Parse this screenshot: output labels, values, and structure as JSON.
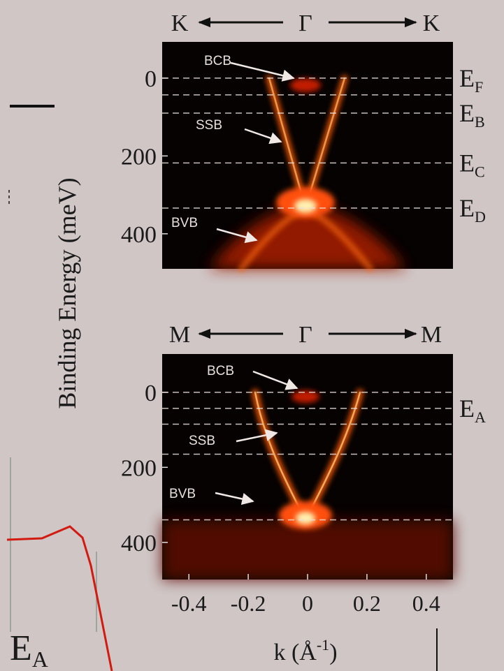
{
  "figure": {
    "ylabel": "Binding Energy (meV)",
    "xlabel": {
      "text": "k (Å",
      "sup": "-1",
      "end": ")"
    },
    "left_label": {
      "symbol": "E",
      "subscript": "A"
    }
  },
  "chart_data": [
    {
      "type": "heatmap",
      "directions": [
        "K",
        "Γ",
        "K"
      ],
      "xlim": [
        -0.49,
        0.49
      ],
      "ylim": [
        -93,
        490
      ],
      "yticks": [
        0,
        200,
        400
      ],
      "levels": [
        {
          "value": 0,
          "symbol": "E",
          "subscript": "F"
        },
        43,
        {
          "value": 90,
          "symbol": "E",
          "subscript": "B"
        },
        {
          "value": 218,
          "symbol": "E",
          "subscript": "C"
        },
        {
          "value": 334,
          "symbol": "E",
          "subscript": "D"
        }
      ],
      "annotations": [
        "BCB",
        "SSB",
        "BVB"
      ]
    },
    {
      "type": "heatmap",
      "directions": [
        "M",
        "Γ",
        "M"
      ],
      "xlim": [
        -0.49,
        0.49
      ],
      "ylim": [
        -102,
        499
      ],
      "xticks": [
        -0.4,
        -0.2,
        0,
        0.2,
        0.4
      ],
      "yticks": [
        0,
        200,
        400
      ],
      "levels": [
        0,
        {
          "value": 43,
          "symbol": "E",
          "subscript": "A"
        },
        85,
        165,
        340
      ],
      "annotations": [
        "BCB",
        "SSB",
        "BVB"
      ]
    }
  ]
}
